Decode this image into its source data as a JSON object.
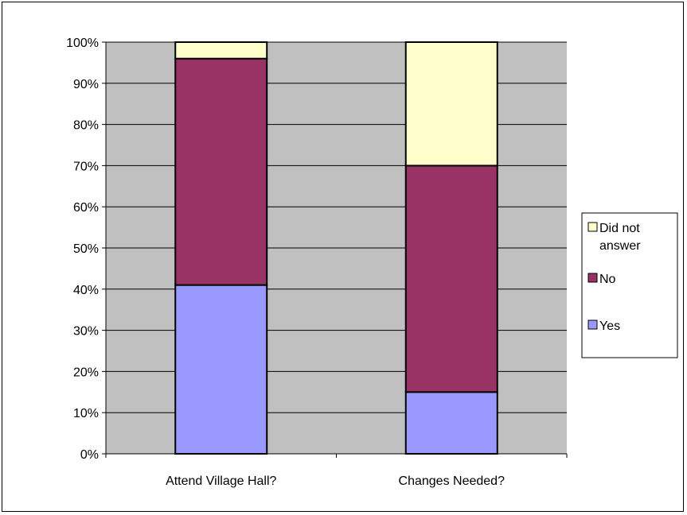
{
  "chart_data": {
    "type": "bar",
    "stacked": true,
    "percent": true,
    "categories": [
      "Attend Village Hall?",
      "Changes Needed?"
    ],
    "series": [
      {
        "name": "Yes",
        "values": [
          41,
          15
        ],
        "color": "#9999ff"
      },
      {
        "name": "No",
        "values": [
          55,
          55
        ],
        "color": "#993366"
      },
      {
        "name": "Did not answer",
        "values": [
          4,
          30
        ],
        "color": "#ffffcc"
      }
    ],
    "y_ticks": [
      "0%",
      "10%",
      "20%",
      "30%",
      "40%",
      "50%",
      "60%",
      "70%",
      "80%",
      "90%",
      "100%"
    ],
    "ylim": [
      0,
      100
    ],
    "grid": true,
    "plot_background": "#c0c0c0",
    "legend": {
      "position": "right",
      "entries": [
        {
          "label_lines": [
            "Did not",
            "answer"
          ],
          "color": "#ffffcc"
        },
        {
          "label_lines": [
            "No"
          ],
          "color": "#993366"
        },
        {
          "label_lines": [
            "Yes"
          ],
          "color": "#9999ff"
        }
      ]
    }
  }
}
